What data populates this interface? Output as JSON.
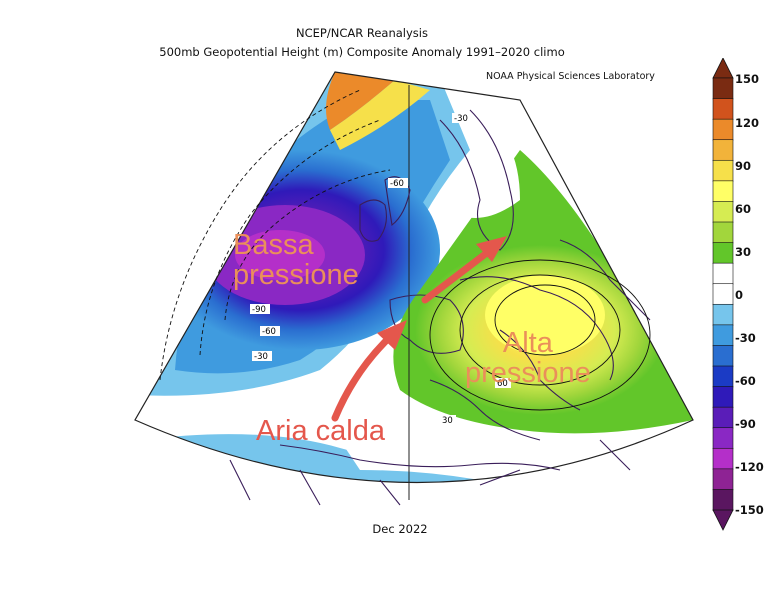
{
  "header": {
    "title": "NCEP/NCAR Reanalysis",
    "subtitle": "500mb Geopotential Height (m) Composite Anomaly 1991–2020 climo",
    "credit": "NOAA Physical Sciences Laboratory"
  },
  "footer": {
    "date": "Dec 2022"
  },
  "colorbar": {
    "labels": [
      "150",
      "120",
      "90",
      "60",
      "30",
      "0",
      "-30",
      "-60",
      "-90",
      "-120",
      "-150"
    ],
    "colors": [
      "#7a2b12",
      "#d1531d",
      "#eb8a2a",
      "#f2b33a",
      "#f6e04a",
      "#ffff66",
      "#d6ec52",
      "#a2d63c",
      "#62c62a",
      "#ffffff",
      "#ffffff",
      "#76c5ec",
      "#3f9bdf",
      "#2a6ed0",
      "#1b3bc5",
      "#2f1ab9",
      "#5a1db8",
      "#8a28c4",
      "#b42fc9",
      "#8e2394",
      "#5a1660"
    ]
  },
  "contour_labels": [
    "-30",
    "-60",
    "-90",
    "-60",
    "-30",
    "60",
    "30"
  ],
  "annotations": {
    "low": [
      "Bassa",
      "pressione"
    ],
    "high": [
      "Alta",
      "pressione"
    ],
    "warm_air": "Aria calda"
  }
}
